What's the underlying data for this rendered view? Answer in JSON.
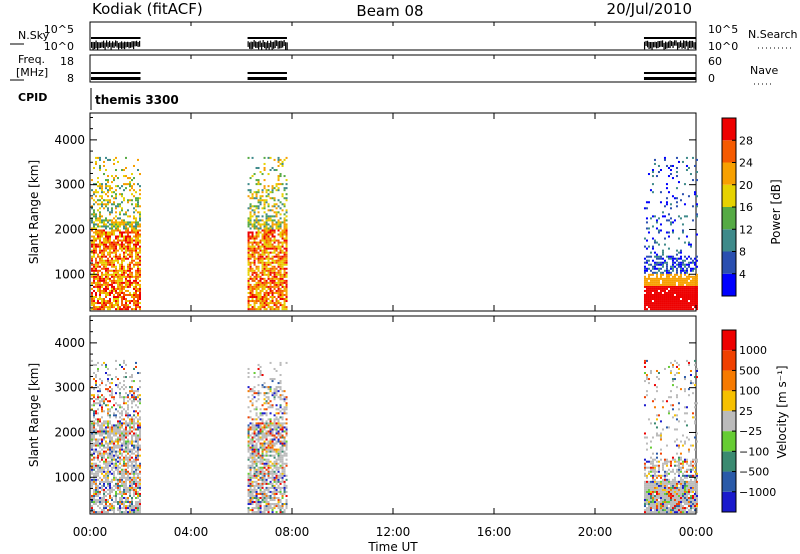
{
  "header": {
    "station": "Kodiak (fitACF)",
    "beam": "Beam 08",
    "date": "20/Jul/2010"
  },
  "aux_panels": {
    "nsky": {
      "label": "N.Sky",
      "ticks": [
        "10^5",
        "10^0"
      ],
      "right_label": "N.Search",
      "right_ticks": [
        "10^5",
        "10^0"
      ]
    },
    "freq": {
      "label_line1": "Freq.",
      "label_line2": "[MHz]",
      "ticks": [
        "18",
        "8"
      ],
      "right_label": "Nave",
      "right_ticks": [
        "60",
        "0"
      ]
    },
    "cpid": {
      "label": "CPID",
      "text": "themis 3300"
    }
  },
  "x_axis": {
    "title": "Time UT",
    "ticks": [
      "00:00",
      "04:00",
      "08:00",
      "12:00",
      "16:00",
      "20:00",
      "00:00"
    ]
  },
  "chart_data": [
    {
      "type": "heatmap",
      "quantity": "Power",
      "ylabel": "Slant Range [km]",
      "yticks": [
        1000,
        2000,
        3000,
        4000
      ],
      "ylim": [
        180,
        4600
      ],
      "xlim_hours": [
        0,
        24
      ],
      "colorbar": {
        "label": "Power [dB]",
        "ticks": [
          "4",
          "8",
          "12",
          "16",
          "20",
          "24",
          "28"
        ],
        "colors": [
          "#0000ff",
          "#2a4fb0",
          "#3e8a8a",
          "#55aa44",
          "#e6d200",
          "#f7a000",
          "#f55a00",
          "#ee0000"
        ]
      },
      "data_intervals_hours": [
        [
          0.0,
          2.0
        ],
        [
          6.2,
          7.8
        ],
        [
          21.9,
          24.0
        ]
      ]
    },
    {
      "type": "heatmap",
      "quantity": "Velocity",
      "ylabel": "Slant Range [km]",
      "yticks": [
        1000,
        2000,
        3000,
        4000
      ],
      "ylim": [
        180,
        4600
      ],
      "xlim_hours": [
        0,
        24
      ],
      "colorbar": {
        "label": "Velocity [m s⁻¹]",
        "ticks": [
          "1000",
          "500",
          "100",
          "25",
          "−25",
          "−100",
          "−500",
          "−1000"
        ],
        "colors": [
          "#1a1acc",
          "#2a5aa8",
          "#3a8a70",
          "#66cc33",
          "#bbbbbb",
          "#f6c000",
          "#f67a00",
          "#f04000",
          "#ee0000"
        ]
      },
      "data_intervals_hours": [
        [
          0.0,
          2.0
        ],
        [
          6.2,
          7.8
        ],
        [
          21.9,
          24.0
        ]
      ]
    }
  ]
}
